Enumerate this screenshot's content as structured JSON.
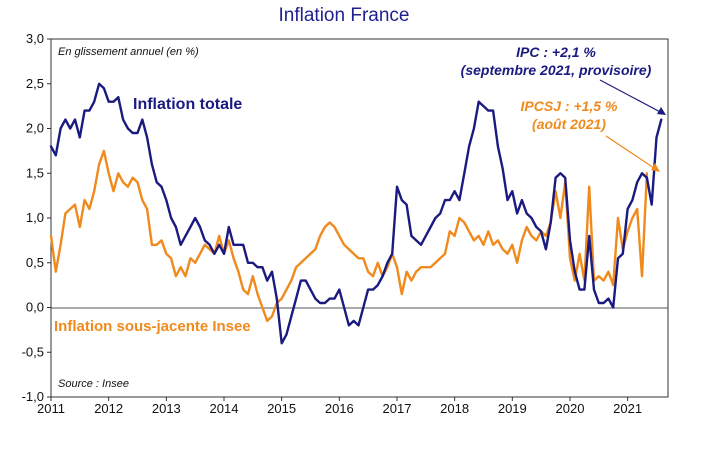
{
  "chart_data": {
    "type": "line",
    "title": "Inflation France",
    "subtitle": "En glissement annuel (en %)",
    "source": "Source : Insee",
    "xlabel": "",
    "ylabel": "",
    "ylim": [
      -1.0,
      3.0
    ],
    "y_ticks": [
      "3,0",
      "2,5",
      "2,0",
      "1,5",
      "1,0",
      "0,5",
      "0,0",
      "-0,5",
      "-1,0"
    ],
    "y_tick_values": [
      3.0,
      2.5,
      2.0,
      1.5,
      1.0,
      0.5,
      0.0,
      -0.5,
      -1.0
    ],
    "x_ticks": [
      "2011",
      "2012",
      "2013",
      "2014",
      "2015",
      "2016",
      "2017",
      "2018",
      "2019",
      "2020",
      "2021"
    ],
    "x_tick_values": [
      2011,
      2012,
      2013,
      2014,
      2015,
      2016,
      2017,
      2018,
      2019,
      2020,
      2021
    ],
    "xlim": [
      2011,
      2021.7
    ],
    "grid": false,
    "annotations": {
      "ipc_line1": "IPC : +2,1 %",
      "ipc_line2": "(septembre 2021, provisoire)",
      "core_line1": "IPCSJ : +1,5 %",
      "core_line2": "(août 2021)"
    },
    "series": [
      {
        "name": "Inflation totale",
        "color": "#1a1a80",
        "x_start": 2011.0,
        "step": 0.083333,
        "values": [
          1.8,
          1.7,
          2.0,
          2.1,
          2.0,
          2.1,
          1.9,
          2.2,
          2.2,
          2.3,
          2.5,
          2.45,
          2.3,
          2.3,
          2.35,
          2.1,
          2.0,
          1.95,
          1.95,
          2.1,
          1.9,
          1.6,
          1.4,
          1.35,
          1.2,
          1.0,
          0.9,
          0.7,
          0.8,
          0.9,
          1.0,
          0.9,
          0.75,
          0.7,
          0.6,
          0.7,
          0.6,
          0.9,
          0.7,
          0.7,
          0.7,
          0.5,
          0.5,
          0.45,
          0.45,
          0.3,
          0.4,
          0.1,
          -0.4,
          -0.3,
          -0.1,
          0.1,
          0.3,
          0.3,
          0.2,
          0.1,
          0.05,
          0.05,
          0.1,
          0.1,
          0.2,
          0.0,
          -0.2,
          -0.15,
          -0.2,
          0.0,
          0.2,
          0.2,
          0.25,
          0.35,
          0.5,
          0.6,
          1.35,
          1.2,
          1.15,
          0.8,
          0.75,
          0.7,
          0.8,
          0.9,
          1.0,
          1.05,
          1.2,
          1.2,
          1.3,
          1.2,
          1.5,
          1.8,
          2.0,
          2.3,
          2.25,
          2.2,
          2.2,
          1.8,
          1.55,
          1.2,
          1.3,
          1.05,
          1.2,
          1.05,
          1.0,
          0.9,
          0.85,
          0.65,
          0.95,
          1.45,
          1.5,
          1.45,
          0.75,
          0.4,
          0.2,
          0.2,
          0.8,
          0.2,
          0.05,
          0.05,
          0.1,
          0.0,
          0.55,
          0.6,
          1.1,
          1.2,
          1.4,
          1.5,
          1.45,
          1.15,
          1.9,
          2.1
        ]
      },
      {
        "name": "Inflation sous-jacente Insee",
        "color": "#f08a1c",
        "x_start": 2011.0,
        "step": 0.083333,
        "values": [
          0.8,
          0.4,
          0.7,
          1.05,
          1.1,
          1.15,
          0.9,
          1.2,
          1.1,
          1.3,
          1.6,
          1.75,
          1.5,
          1.3,
          1.5,
          1.4,
          1.35,
          1.45,
          1.4,
          1.2,
          1.1,
          0.7,
          0.7,
          0.75,
          0.6,
          0.55,
          0.35,
          0.45,
          0.35,
          0.55,
          0.5,
          0.6,
          0.7,
          0.65,
          0.6,
          0.8,
          0.6,
          0.75,
          0.55,
          0.4,
          0.2,
          0.15,
          0.35,
          0.15,
          0.0,
          -0.15,
          -0.1,
          0.05,
          0.1,
          0.2,
          0.3,
          0.45,
          0.5,
          0.55,
          0.6,
          0.65,
          0.8,
          0.9,
          0.95,
          0.9,
          0.8,
          0.7,
          0.65,
          0.6,
          0.55,
          0.55,
          0.4,
          0.35,
          0.5,
          0.35,
          0.45,
          0.6,
          0.45,
          0.15,
          0.4,
          0.3,
          0.4,
          0.45,
          0.45,
          0.45,
          0.5,
          0.55,
          0.6,
          0.85,
          0.8,
          1.0,
          0.95,
          0.85,
          0.75,
          0.8,
          0.7,
          0.85,
          0.7,
          0.75,
          0.65,
          0.6,
          0.7,
          0.5,
          0.75,
          0.9,
          0.8,
          0.75,
          0.85,
          0.8,
          0.95,
          1.3,
          1.0,
          1.4,
          0.55,
          0.3,
          0.6,
          0.3,
          1.35,
          0.3,
          0.35,
          0.3,
          0.4,
          0.25,
          1.0,
          0.65,
          0.85,
          1.0,
          1.1,
          0.35,
          1.5
        ]
      }
    ]
  }
}
